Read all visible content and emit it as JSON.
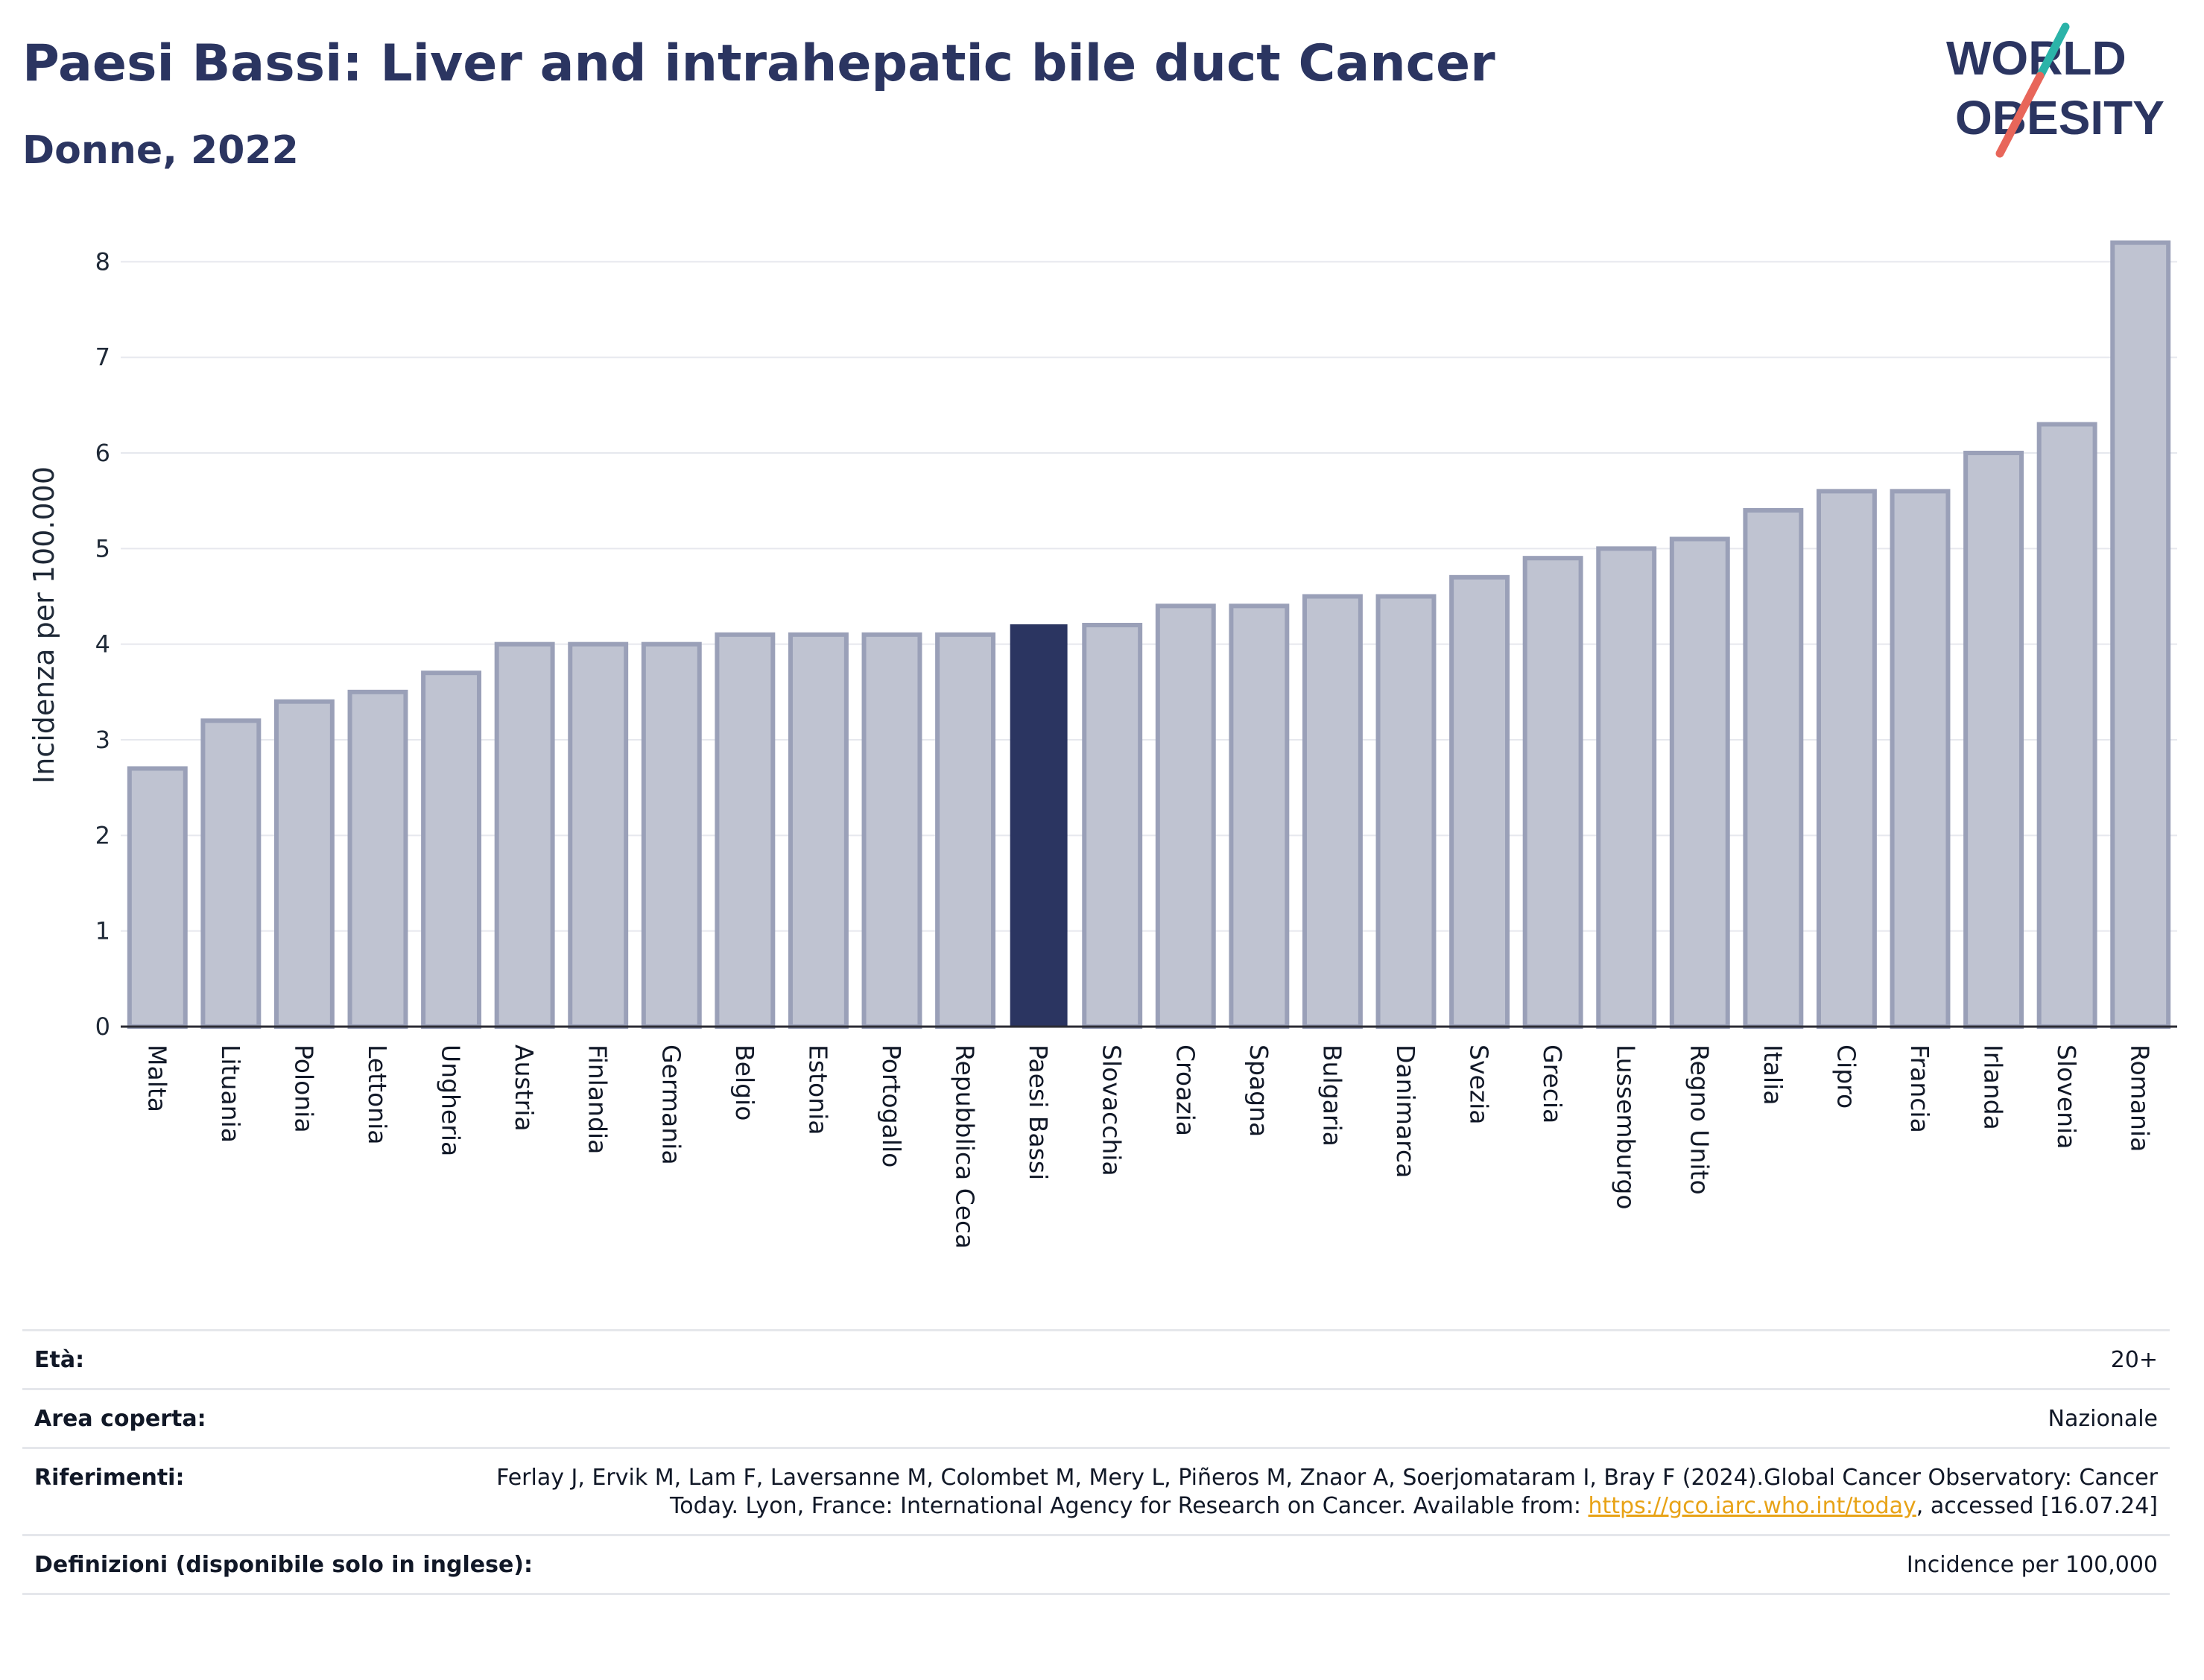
{
  "header": {
    "title": "Paesi Bassi: Liver and intrahepatic bile duct Cancer",
    "subtitle": "Donne, 2022"
  },
  "logo": {
    "line1": "WORLD",
    "line2": "OBESITY",
    "icon": "world-obesity-slash-logo",
    "colors": {
      "text": "#2b3561",
      "slash_top": "#2bb3a8",
      "slash_bottom": "#e8665a"
    }
  },
  "chart_data": {
    "type": "bar",
    "title": "",
    "xlabel": "",
    "ylabel": "Incidenza per 100.000",
    "ylim": [
      0,
      8.4
    ],
    "yticks": [
      "0",
      "1",
      "2",
      "3",
      "4",
      "5",
      "6",
      "7",
      "8"
    ],
    "grid": true,
    "highlight": "Paesi Bassi",
    "colors": {
      "bar": "#bfc3d1",
      "bar_border": "#9aa0b8",
      "highlight": "#2b3561"
    },
    "categories": [
      "Malta",
      "Lituania",
      "Polonia",
      "Lettonia",
      "Ungheria",
      "Austria",
      "Finlandia",
      "Germania",
      "Belgio",
      "Estonia",
      "Portogallo",
      "Repubblica Ceca",
      "Paesi Bassi",
      "Slovacchia",
      "Croazia",
      "Spagna",
      "Bulgaria",
      "Danimarca",
      "Svezia",
      "Grecia",
      "Lussemburgo",
      "Regno Unito",
      "Italia",
      "Cipro",
      "Francia",
      "Irlanda",
      "Slovenia",
      "Romania"
    ],
    "values": [
      2.7,
      3.2,
      3.4,
      3.5,
      3.7,
      4.0,
      4.0,
      4.0,
      4.1,
      4.1,
      4.1,
      4.1,
      4.2,
      4.2,
      4.4,
      4.4,
      4.5,
      4.5,
      4.7,
      4.9,
      5.0,
      5.1,
      5.4,
      5.6,
      5.6,
      6.0,
      6.3,
      8.2
    ]
  },
  "info": {
    "age_label": "Età:",
    "age_value": "20+",
    "area_label": "Area coperta:",
    "area_value": "Nazionale",
    "ref_label": "Riferimenti:",
    "ref_text_1": "Ferlay J, Ervik M, Lam F, Laversanne M, Colombet M, Mery L, Piñeros M, Znaor A, Soerjomataram I, Bray F (2024).Global Cancer Observatory: Cancer Today. Lyon, France: International Agency for Research on Cancer. Available from: ",
    "ref_link": "https://gco.iarc.who.int/today",
    "ref_text_2": ", accessed [16.07.24]",
    "def_label": "Definizioni (disponibile solo in inglese):",
    "def_value": "Incidence per 100,000"
  }
}
